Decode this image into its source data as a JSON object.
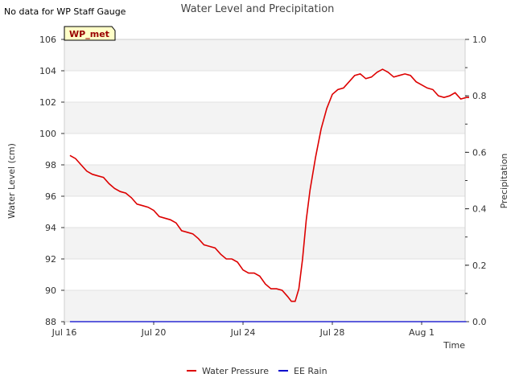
{
  "header": {
    "note": "No data for WP Staff Gauge",
    "badge": "WP_met"
  },
  "chart_data": {
    "type": "line",
    "title": "Water Level and Precipitation",
    "xlabel": "Time",
    "ylabel_left": "Water Level (cm)",
    "ylabel_right": "Precipitation",
    "x_range": [
      "2023-07-16",
      "2023-08-02"
    ],
    "x_ticks": [
      {
        "date": "2023-07-16",
        "label": "Jul 16"
      },
      {
        "date": "2023-07-20",
        "label": "Jul 20"
      },
      {
        "date": "2023-07-24",
        "label": "Jul 24"
      },
      {
        "date": "2023-07-28",
        "label": "Jul 28"
      },
      {
        "date": "2023-08-01",
        "label": "Aug 1"
      }
    ],
    "y_left": {
      "range": [
        88,
        106
      ],
      "ticks": [
        "88",
        "90",
        "92",
        "94",
        "96",
        "98",
        "100",
        "102",
        "104",
        "106"
      ]
    },
    "y_right": {
      "range": [
        0,
        1.0
      ],
      "ticks": [
        "0.0",
        "0.2",
        "0.4",
        "0.6",
        "0.8",
        "1.0"
      ]
    },
    "grid": "horizontal bands",
    "legend_position": "bottom-center",
    "series": [
      {
        "name": "Water Pressure",
        "axis": "left",
        "color": "#dd0000",
        "points": [
          [
            "2023-07-16 06:00",
            98.6
          ],
          [
            "2023-07-16 12:00",
            98.4
          ],
          [
            "2023-07-16 18:00",
            98.0
          ],
          [
            "2023-07-17 00:00",
            97.6
          ],
          [
            "2023-07-17 06:00",
            97.4
          ],
          [
            "2023-07-17 12:00",
            97.3
          ],
          [
            "2023-07-17 18:00",
            97.2
          ],
          [
            "2023-07-18 00:00",
            96.8
          ],
          [
            "2023-07-18 06:00",
            96.5
          ],
          [
            "2023-07-18 12:00",
            96.3
          ],
          [
            "2023-07-18 18:00",
            96.2
          ],
          [
            "2023-07-19 00:00",
            95.9
          ],
          [
            "2023-07-19 06:00",
            95.5
          ],
          [
            "2023-07-19 12:00",
            95.4
          ],
          [
            "2023-07-19 18:00",
            95.3
          ],
          [
            "2023-07-20 00:00",
            95.1
          ],
          [
            "2023-07-20 06:00",
            94.7
          ],
          [
            "2023-07-20 12:00",
            94.6
          ],
          [
            "2023-07-20 18:00",
            94.5
          ],
          [
            "2023-07-21 00:00",
            94.3
          ],
          [
            "2023-07-21 06:00",
            93.8
          ],
          [
            "2023-07-21 12:00",
            93.7
          ],
          [
            "2023-07-21 18:00",
            93.6
          ],
          [
            "2023-07-22 00:00",
            93.3
          ],
          [
            "2023-07-22 06:00",
            92.9
          ],
          [
            "2023-07-22 12:00",
            92.8
          ],
          [
            "2023-07-22 18:00",
            92.7
          ],
          [
            "2023-07-23 00:00",
            92.3
          ],
          [
            "2023-07-23 06:00",
            92.0
          ],
          [
            "2023-07-23 12:00",
            92.0
          ],
          [
            "2023-07-23 18:00",
            91.8
          ],
          [
            "2023-07-24 00:00",
            91.3
          ],
          [
            "2023-07-24 06:00",
            91.1
          ],
          [
            "2023-07-24 12:00",
            91.1
          ],
          [
            "2023-07-24 18:00",
            90.9
          ],
          [
            "2023-07-25 00:00",
            90.4
          ],
          [
            "2023-07-25 06:00",
            90.1
          ],
          [
            "2023-07-25 12:00",
            90.1
          ],
          [
            "2023-07-25 18:00",
            90.0
          ],
          [
            "2023-07-26 00:00",
            89.6
          ],
          [
            "2023-07-26 04:00",
            89.3
          ],
          [
            "2023-07-26 08:00",
            89.3
          ],
          [
            "2023-07-26 12:00",
            90.1
          ],
          [
            "2023-07-26 16:00",
            92.0
          ],
          [
            "2023-07-26 20:00",
            94.5
          ],
          [
            "2023-07-27 00:00",
            96.4
          ],
          [
            "2023-07-27 06:00",
            98.5
          ],
          [
            "2023-07-27 12:00",
            100.3
          ],
          [
            "2023-07-27 18:00",
            101.6
          ],
          [
            "2023-07-28 00:00",
            102.5
          ],
          [
            "2023-07-28 06:00",
            102.8
          ],
          [
            "2023-07-28 12:00",
            102.9
          ],
          [
            "2023-07-28 18:00",
            103.3
          ],
          [
            "2023-07-29 00:00",
            103.7
          ],
          [
            "2023-07-29 06:00",
            103.8
          ],
          [
            "2023-07-29 12:00",
            103.5
          ],
          [
            "2023-07-29 18:00",
            103.6
          ],
          [
            "2023-07-30 00:00",
            103.9
          ],
          [
            "2023-07-30 06:00",
            104.1
          ],
          [
            "2023-07-30 12:00",
            103.9
          ],
          [
            "2023-07-30 18:00",
            103.6
          ],
          [
            "2023-07-31 00:00",
            103.7
          ],
          [
            "2023-07-31 06:00",
            103.8
          ],
          [
            "2023-07-31 12:00",
            103.7
          ],
          [
            "2023-07-31 18:00",
            103.3
          ],
          [
            "2023-08-01 00:00",
            103.1
          ],
          [
            "2023-08-01 06:00",
            102.9
          ],
          [
            "2023-08-01 12:00",
            102.8
          ],
          [
            "2023-08-01 18:00",
            102.4
          ],
          [
            "2023-08-02 00:00",
            102.3
          ],
          [
            "2023-08-02 06:00",
            102.4
          ],
          [
            "2023-08-02 12:00",
            102.6
          ],
          [
            "2023-08-02 18:00",
            102.2
          ],
          [
            "2023-08-03 00:00",
            102.3
          ],
          [
            "2023-08-03 03:00",
            102.3
          ]
        ]
      },
      {
        "name": "EE Rain",
        "axis": "right",
        "color": "#0000cc",
        "points": [
          [
            "2023-07-16 06:00",
            0.0
          ],
          [
            "2023-08-03 00:00",
            0.0
          ]
        ]
      }
    ]
  }
}
